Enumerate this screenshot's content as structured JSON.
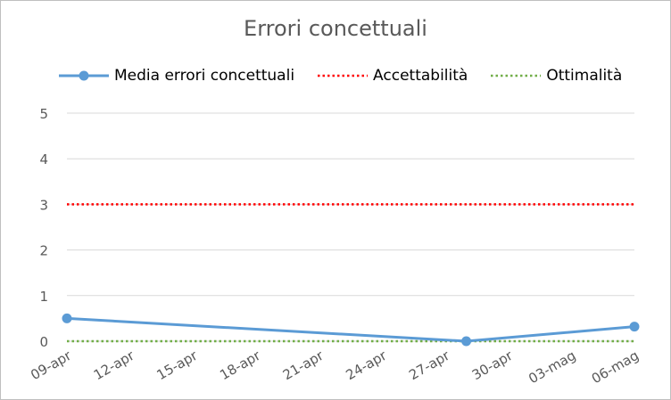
{
  "chart_data": {
    "type": "line",
    "title": "Errori concettuali",
    "xlabel": "",
    "ylabel": "",
    "x_ticks": [
      "09-apr",
      "12-apr",
      "15-apr",
      "18-apr",
      "21-apr",
      "24-apr",
      "27-apr",
      "30-apr",
      "03-mag",
      "06-mag"
    ],
    "x_range_days": [
      0,
      27
    ],
    "ylim": [
      0,
      5
    ],
    "y_ticks": [
      "0",
      "1",
      "2",
      "3",
      "4",
      "5"
    ],
    "grid": "horizontal",
    "legend_position": "top",
    "series": [
      {
        "name": "Media errori concettuali",
        "style": "solid-markers",
        "color": "#5b9bd5",
        "points": [
          {
            "x": "09-apr",
            "y": 0.5
          },
          {
            "x": "28-apr",
            "y": 0.0
          },
          {
            "x": "06-mag",
            "y": 0.32
          }
        ]
      },
      {
        "name": "Accettabilità",
        "style": "dotted",
        "color": "#ff0000",
        "points": [
          {
            "x": "09-apr",
            "y": 3
          },
          {
            "x": "06-mag",
            "y": 3
          }
        ]
      },
      {
        "name": "Ottimalità",
        "style": "dotted",
        "color": "#70ad47",
        "points": [
          {
            "x": "09-apr",
            "y": 0
          },
          {
            "x": "06-mag",
            "y": 0
          }
        ]
      }
    ]
  }
}
